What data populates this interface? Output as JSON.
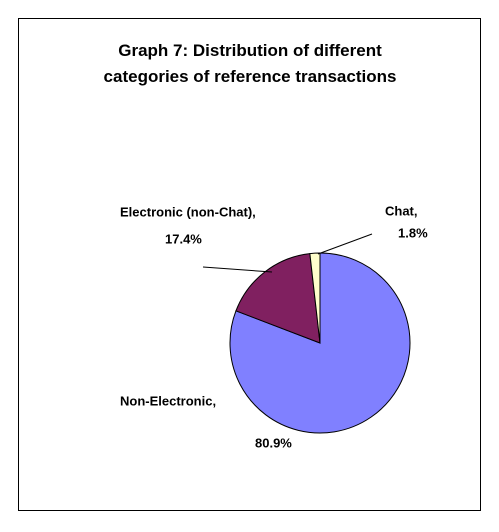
{
  "chart_data": {
    "type": "pie",
    "title": "Graph 7: Distribution of different categories of reference transactions",
    "categories": [
      "Non-Electronic,",
      "Electronic (non-Chat),",
      "Chat,"
    ],
    "values": [
      80.9,
      17.4,
      1.8
    ],
    "value_labels": [
      "80.9%",
      "17.4%",
      "1.8%"
    ],
    "colors": [
      "#8080ff",
      "#802060",
      "#ffffcc"
    ]
  }
}
